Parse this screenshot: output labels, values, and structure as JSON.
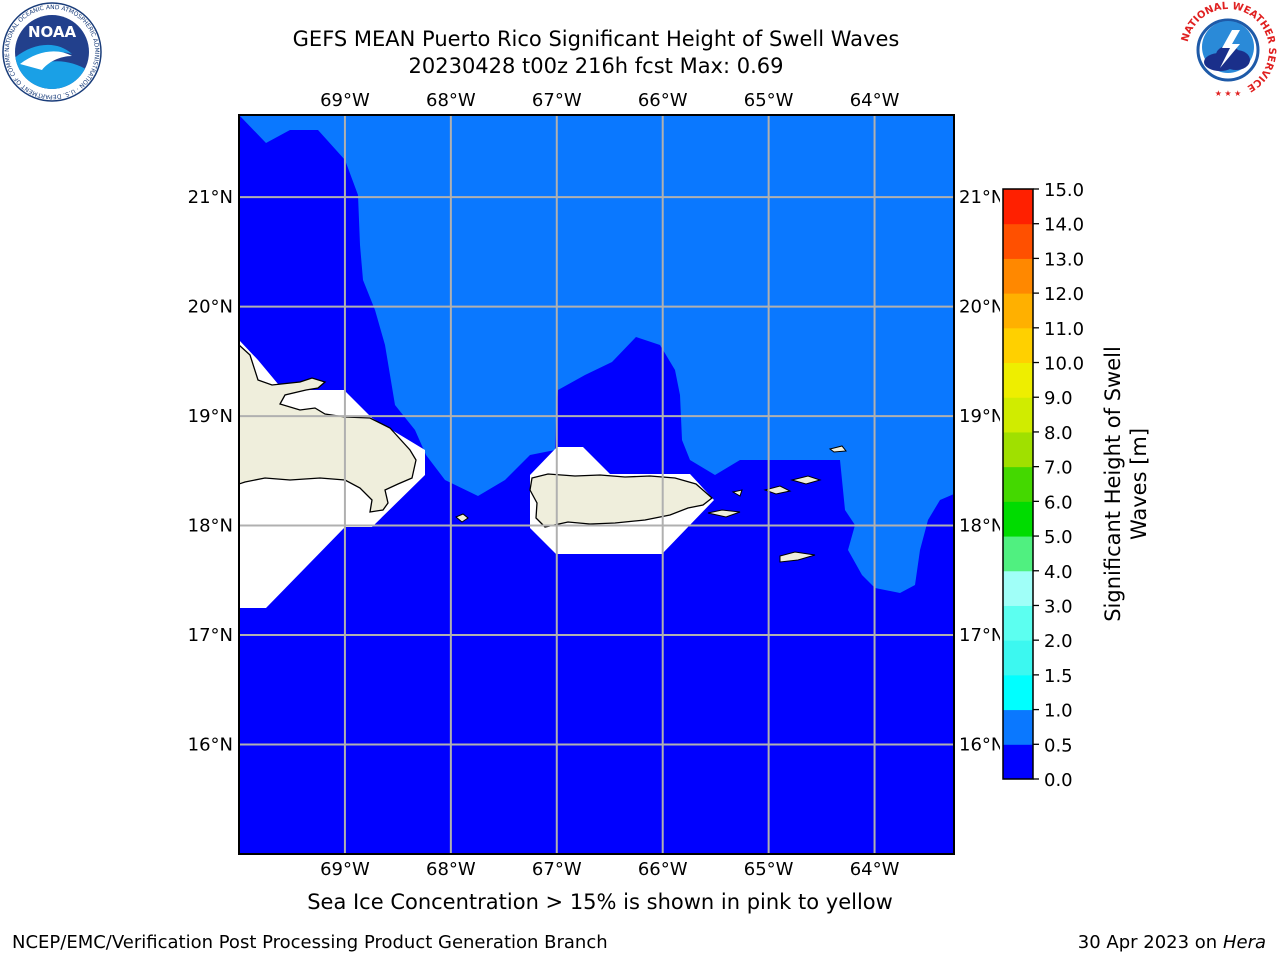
{
  "title": {
    "line1": "GEFS MEAN Puerto Rico Significant Height of Swell Waves",
    "line2": "20230428 t00z 216h fcst   Max: 0.69"
  },
  "map": {
    "lon_range": [
      -70.0,
      -63.25
    ],
    "lat_range": [
      15.0,
      21.75
    ],
    "lon_ticks": [
      {
        "value": -69,
        "label": "69°W"
      },
      {
        "value": -68,
        "label": "68°W"
      },
      {
        "value": -67,
        "label": "67°W"
      },
      {
        "value": -66,
        "label": "66°W"
      },
      {
        "value": -65,
        "label": "65°W"
      },
      {
        "value": -64,
        "label": "64°W"
      }
    ],
    "lat_ticks": [
      {
        "value": 21,
        "label": "21°N"
      },
      {
        "value": 20,
        "label": "20°N"
      },
      {
        "value": 19,
        "label": "19°N"
      },
      {
        "value": 18,
        "label": "18°N"
      },
      {
        "value": 17,
        "label": "17°N"
      },
      {
        "value": 16,
        "label": "16°N"
      }
    ],
    "gridlines": true,
    "colors": {
      "band_0_0_5": "#0000ff",
      "band_0_5_1_0": "#0a78ff",
      "land": "#efeedc",
      "masked": "#ffffff",
      "grid": "#b0b0b0"
    }
  },
  "colorbar": {
    "label": "Significant Height of Swell Waves [m]",
    "ticks": [
      "0.0",
      "0.5",
      "1.0",
      "1.5",
      "2.0",
      "3.0",
      "4.0",
      "5.0",
      "6.0",
      "7.0",
      "8.0",
      "9.0",
      "10.0",
      "11.0",
      "12.0",
      "13.0",
      "14.0",
      "15.0"
    ],
    "colors": [
      "#0000ff",
      "#0a78ff",
      "#00ffff",
      "#3cf8f0",
      "#5cfff0",
      "#a0fff8",
      "#50f080",
      "#00dc00",
      "#44d800",
      "#a0e000",
      "#d0ec00",
      "#eeee00",
      "#ffd000",
      "#ffb000",
      "#ff8800",
      "#ff5000",
      "#ff2000"
    ]
  },
  "footer": {
    "note": "Sea Ice Concentration > 15% is shown in pink to yellow",
    "left": "NCEP/EMC/Verification Post Processing Product Generation Branch",
    "date": "30 Apr 2023 on ",
    "machine": "Hera"
  },
  "logos": {
    "noaa": {
      "center_text": "NOAA",
      "ring_text": "NATIONAL OCEANIC AND ATMOSPHERIC ADMINISTRATION · U.S. DEPARTMENT OF COMMERCE"
    },
    "nws": {
      "ring_text": "NATIONAL WEATHER SERVICE"
    }
  }
}
